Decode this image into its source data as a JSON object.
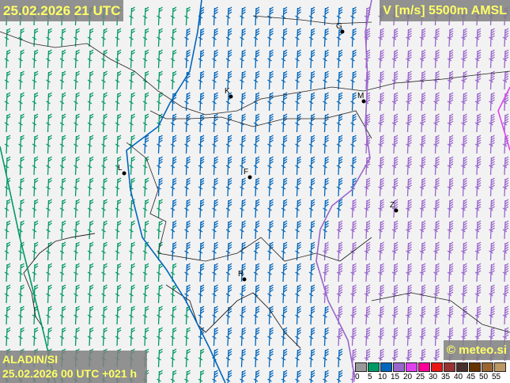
{
  "header": {
    "valid_time": "25.02.2026 21 UTC",
    "parameter": "V [m/s] 5500m AMSL"
  },
  "footer": {
    "model": "ALADIN/SI",
    "run": "25.02.2026 00 UTC +021 h",
    "copyright": "© meteo.si"
  },
  "legend": {
    "colors": [
      "#999999",
      "#009966",
      "#0066bb",
      "#9966cc",
      "#e040f0",
      "#ff0099",
      "#e81818",
      "#993333",
      "#4a2f2f",
      "#663300",
      "#996633",
      "#bb9966"
    ],
    "ticks": [
      "0",
      "5",
      "10",
      "15",
      "20",
      "25",
      "30",
      "35",
      "40",
      "45",
      "50",
      "55"
    ]
  },
  "cities": [
    {
      "name": "G"
    },
    {
      "name": "K"
    },
    {
      "name": "M"
    },
    {
      "name": "L"
    },
    {
      "name": "F"
    },
    {
      "name": "Z"
    },
    {
      "name": "R"
    }
  ],
  "wind_field": {
    "direction": "southerly",
    "speed_zones": [
      {
        "range": "5-10 m/s",
        "color": "#009966"
      },
      {
        "range": "10-15 m/s",
        "color": "#0066bb"
      },
      {
        "range": "15-20 m/s",
        "color": "#9966cc"
      }
    ]
  }
}
